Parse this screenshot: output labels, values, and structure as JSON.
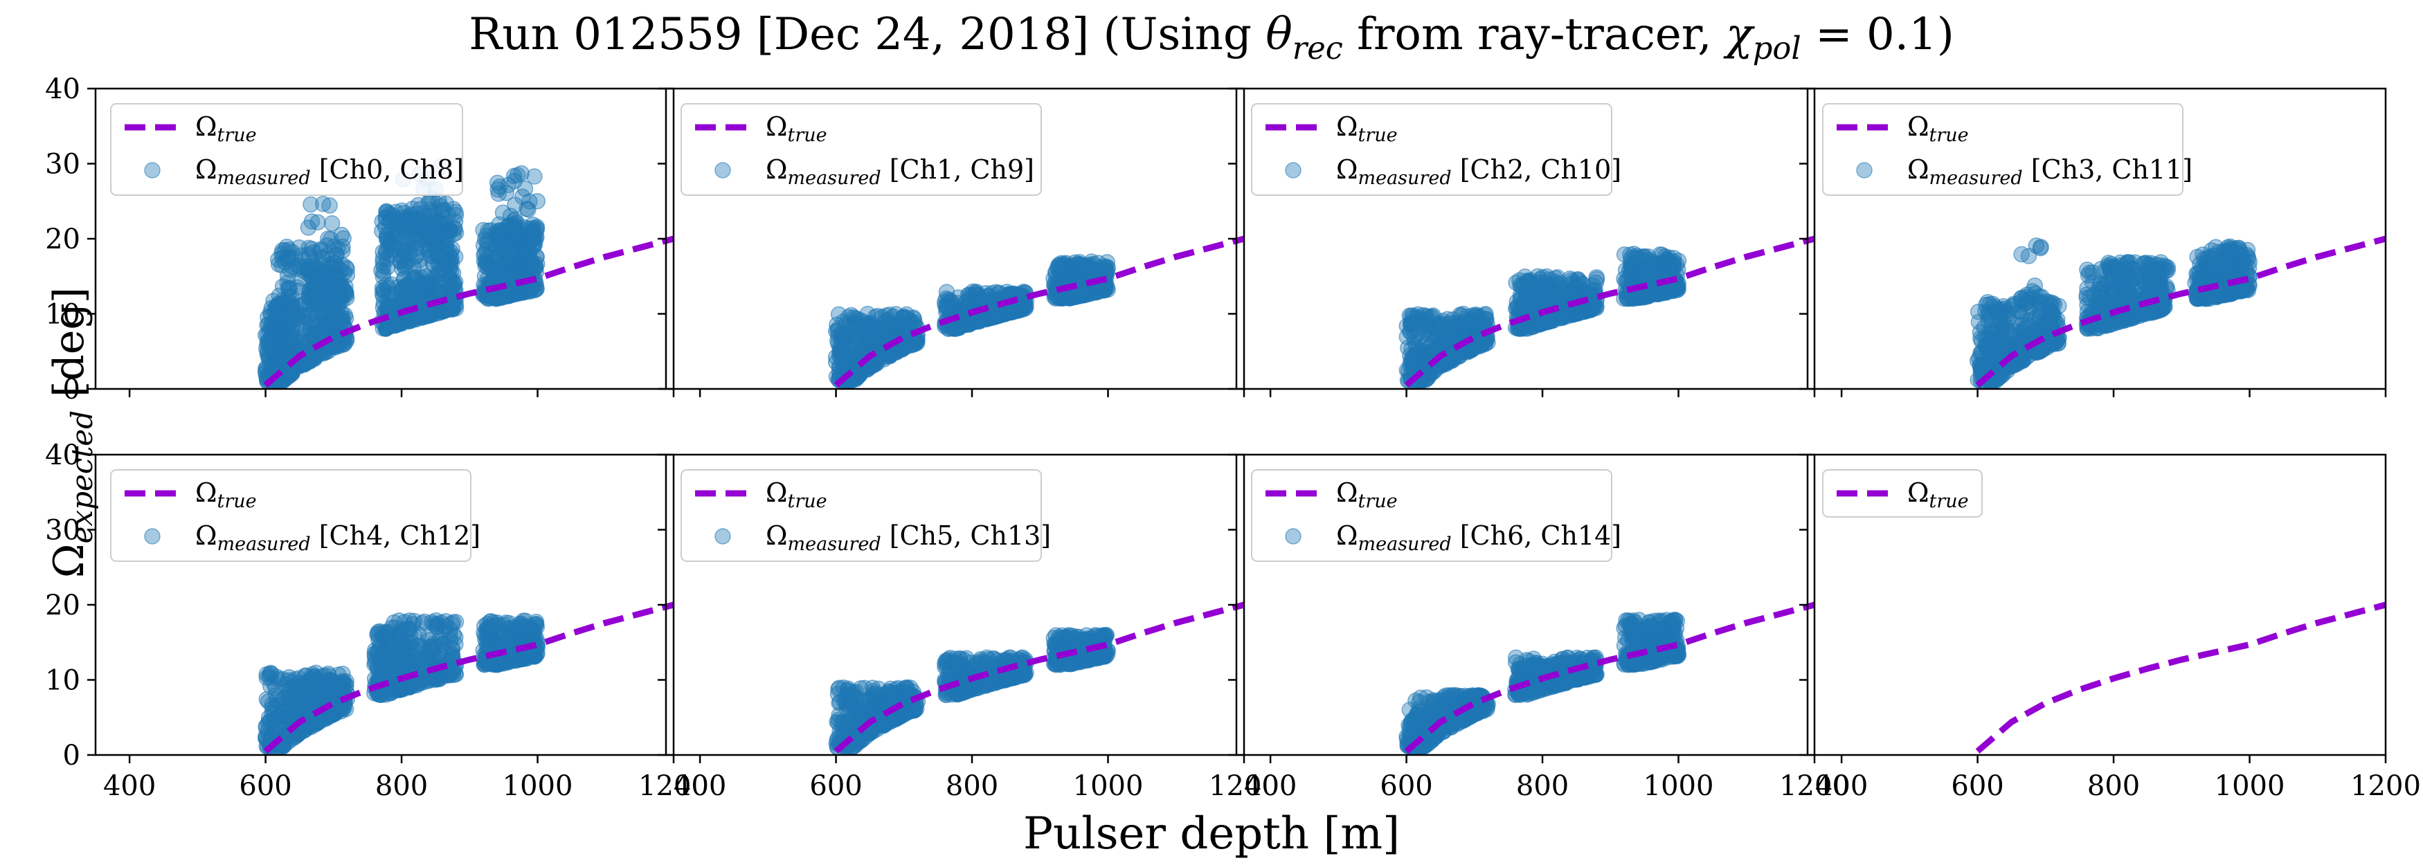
{
  "title": {
    "pre": "Run 012559 [Dec 24, 2018] (Using ",
    "theta": "θ",
    "theta_sub": "rec",
    "mid": " from ray-tracer, ",
    "chi": "χ",
    "chi_sub": "pol",
    "post": " = 0.1)"
  },
  "xlabel": "Pulser depth [m]",
  "ylabel": {
    "omega": "Ω",
    "sub": "expected",
    "post": " [deg]"
  },
  "colors": {
    "true_line": "#9400D3",
    "measured": "#1f77b4",
    "axis": "#000000",
    "legend_border": "#cccccc"
  },
  "chart_data": [
    {
      "type": "scatter",
      "channels": "[Ch0, Ch8]",
      "xlim": [
        350,
        1200
      ],
      "ylim": [
        0,
        40
      ],
      "xticks": [
        "400",
        "600",
        "800",
        "1000",
        "1200"
      ],
      "yticks": [
        "0",
        "10",
        "20",
        "30",
        "40"
      ],
      "grid": false,
      "legend": "upper-left",
      "series": [
        {
          "name": "Ω_true",
          "kind": "dashed-line",
          "x": [
            600,
            650,
            700,
            750,
            800,
            850,
            900,
            950,
            1000,
            1050,
            1100,
            1150,
            1200
          ],
          "y": [
            0.5,
            4.4,
            6.9,
            8.7,
            10.2,
            11.5,
            12.7,
            13.7,
            14.7,
            16.2,
            17.6,
            18.8,
            20.0
          ]
        },
        {
          "name": "Ω_measured [Ch0, Ch8]",
          "kind": "scatter",
          "clusters": [
            {
              "x": [
                600,
                640
              ],
              "y": [
                1,
                12
              ],
              "n": 230
            },
            {
              "x": [
                615,
                720
              ],
              "y": [
                3,
                19
              ],
              "n": 360
            },
            {
              "x": [
                660,
                720
              ],
              "y": [
                12,
                25
              ],
              "n": 60
            },
            {
              "x": [
                770,
                880
              ],
              "y": [
                8,
                24
              ],
              "n": 450
            },
            {
              "x": [
                790,
                870
              ],
              "y": [
                20,
                30
              ],
              "n": 40
            },
            {
              "x": [
                920,
                1000
              ],
              "y": [
                12,
                22
              ],
              "n": 330
            },
            {
              "x": [
                940,
                1000
              ],
              "y": [
                20,
                30
              ],
              "n": 50
            }
          ]
        }
      ]
    },
    {
      "type": "scatter",
      "channels": "[Ch1, Ch9]",
      "xlim": [
        350,
        1200
      ],
      "ylim": [
        0,
        40
      ],
      "xticks": [
        "400",
        "600",
        "800",
        "1000",
        "1200"
      ],
      "yticks": [
        "0",
        "10",
        "20",
        "30",
        "40"
      ],
      "grid": false,
      "legend": "upper-left",
      "series": [
        {
          "name": "Ω_true",
          "kind": "dashed-line",
          "x": [
            600,
            650,
            700,
            750,
            800,
            850,
            900,
            950,
            1000,
            1050,
            1100,
            1150,
            1200
          ],
          "y": [
            0.5,
            4.4,
            6.9,
            8.7,
            10.2,
            11.5,
            12.7,
            13.7,
            14.7,
            16.2,
            17.6,
            18.8,
            20.0
          ]
        },
        {
          "name": "Ω_measured [Ch1, Ch9]",
          "kind": "scatter",
          "clusters": [
            {
              "x": [
                600,
                720
              ],
              "y": [
                1,
                10
              ],
              "n": 350
            },
            {
              "x": [
                760,
                880
              ],
              "y": [
                8,
                13
              ],
              "n": 330
            },
            {
              "x": [
                920,
                1000
              ],
              "y": [
                12,
                17
              ],
              "n": 280
            }
          ]
        }
      ]
    },
    {
      "type": "scatter",
      "channels": "[Ch2, Ch10]",
      "xlim": [
        350,
        1200
      ],
      "ylim": [
        0,
        40
      ],
      "xticks": [
        "400",
        "600",
        "800",
        "1000",
        "1200"
      ],
      "yticks": [
        "0",
        "10",
        "20",
        "30",
        "40"
      ],
      "grid": false,
      "legend": "upper-left",
      "series": [
        {
          "name": "Ω_true",
          "kind": "dashed-line",
          "x": [
            600,
            650,
            700,
            750,
            800,
            850,
            900,
            950,
            1000,
            1050,
            1100,
            1150,
            1200
          ],
          "y": [
            0.5,
            4.4,
            6.9,
            8.7,
            10.2,
            11.5,
            12.7,
            13.7,
            14.7,
            16.2,
            17.6,
            18.8,
            20.0
          ]
        },
        {
          "name": "Ω_measured [Ch2, Ch10]",
          "kind": "scatter",
          "clusters": [
            {
              "x": [
                600,
                720
              ],
              "y": [
                1,
                10
              ],
              "n": 350
            },
            {
              "x": [
                760,
                880
              ],
              "y": [
                8,
                15
              ],
              "n": 330
            },
            {
              "x": [
                920,
                1000
              ],
              "y": [
                12,
                18
              ],
              "n": 280
            }
          ]
        }
      ]
    },
    {
      "type": "scatter",
      "channels": "[Ch3, Ch11]",
      "xlim": [
        350,
        1200
      ],
      "ylim": [
        0,
        40
      ],
      "xticks": [
        "400",
        "600",
        "800",
        "1000",
        "1200"
      ],
      "yticks": [
        "0",
        "10",
        "20",
        "30",
        "40"
      ],
      "grid": false,
      "legend": "upper-left",
      "series": [
        {
          "name": "Ω_true",
          "kind": "dashed-line",
          "x": [
            600,
            650,
            700,
            750,
            800,
            850,
            900,
            950,
            1000,
            1050,
            1100,
            1150,
            1200
          ],
          "y": [
            0.5,
            4.4,
            6.9,
            8.7,
            10.2,
            11.5,
            12.7,
            13.7,
            14.7,
            16.2,
            17.6,
            18.8,
            20.0
          ]
        },
        {
          "name": "Ω_measured [Ch3, Ch11]",
          "kind": "scatter",
          "clusters": [
            {
              "x": [
                600,
                720
              ],
              "y": [
                1,
                12
              ],
              "n": 350
            },
            {
              "x": [
                660,
                700
              ],
              "y": [
                12,
                21
              ],
              "n": 15
            },
            {
              "x": [
                760,
                880
              ],
              "y": [
                8,
                17
              ],
              "n": 330
            },
            {
              "x": [
                920,
                1000
              ],
              "y": [
                12,
                19
              ],
              "n": 280
            }
          ]
        }
      ]
    },
    {
      "type": "scatter",
      "channels": "[Ch4, Ch12]",
      "xlim": [
        350,
        1200
      ],
      "ylim": [
        0,
        40
      ],
      "xticks": [
        "400",
        "600",
        "800",
        "1000",
        "1200"
      ],
      "yticks": [
        "0",
        "10",
        "20",
        "30",
        "40"
      ],
      "grid": false,
      "legend": "upper-left",
      "series": [
        {
          "name": "Ω_true",
          "kind": "dashed-line",
          "x": [
            600,
            650,
            700,
            750,
            800,
            850,
            900,
            950,
            1000,
            1050,
            1100,
            1150,
            1200
          ],
          "y": [
            0.5,
            4.4,
            6.9,
            8.7,
            10.2,
            11.5,
            12.7,
            13.7,
            14.7,
            16.2,
            17.6,
            18.8,
            20.0
          ]
        },
        {
          "name": "Ω_measured [Ch4, Ch12]",
          "kind": "scatter",
          "clusters": [
            {
              "x": [
                600,
                720
              ],
              "y": [
                1,
                11
              ],
              "n": 350
            },
            {
              "x": [
                760,
                880
              ],
              "y": [
                8,
                18
              ],
              "n": 330
            },
            {
              "x": [
                920,
                1000
              ],
              "y": [
                12,
                18
              ],
              "n": 280
            }
          ]
        }
      ]
    },
    {
      "type": "scatter",
      "channels": "[Ch5, Ch13]",
      "xlim": [
        350,
        1200
      ],
      "ylim": [
        0,
        40
      ],
      "xticks": [
        "400",
        "600",
        "800",
        "1000",
        "1200"
      ],
      "yticks": [
        "0",
        "10",
        "20",
        "30",
        "40"
      ],
      "grid": false,
      "legend": "upper-left",
      "series": [
        {
          "name": "Ω_true",
          "kind": "dashed-line",
          "x": [
            600,
            650,
            700,
            750,
            800,
            850,
            900,
            950,
            1000,
            1050,
            1100,
            1150,
            1200
          ],
          "y": [
            0.5,
            4.4,
            6.9,
            8.7,
            10.2,
            11.5,
            12.7,
            13.7,
            14.7,
            16.2,
            17.6,
            18.8,
            20.0
          ]
        },
        {
          "name": "Ω_measured [Ch5, Ch13]",
          "kind": "scatter",
          "clusters": [
            {
              "x": [
                600,
                720
              ],
              "y": [
                1,
                9
              ],
              "n": 350
            },
            {
              "x": [
                760,
                880
              ],
              "y": [
                8,
                13
              ],
              "n": 330
            },
            {
              "x": [
                920,
                1000
              ],
              "y": [
                12,
                16
              ],
              "n": 280
            }
          ]
        }
      ]
    },
    {
      "type": "scatter",
      "channels": "[Ch6, Ch14]",
      "xlim": [
        350,
        1200
      ],
      "ylim": [
        0,
        40
      ],
      "xticks": [
        "400",
        "600",
        "800",
        "1000",
        "1200"
      ],
      "yticks": [
        "0",
        "10",
        "20",
        "30",
        "40"
      ],
      "grid": false,
      "legend": "upper-left",
      "series": [
        {
          "name": "Ω_true",
          "kind": "dashed-line",
          "x": [
            600,
            650,
            700,
            750,
            800,
            850,
            900,
            950,
            1000,
            1050,
            1100,
            1150,
            1200
          ],
          "y": [
            0.5,
            4.4,
            6.9,
            8.7,
            10.2,
            11.5,
            12.7,
            13.7,
            14.7,
            16.2,
            17.6,
            18.8,
            20.0
          ]
        },
        {
          "name": "Ω_measured [Ch6, Ch14]",
          "kind": "scatter",
          "clusters": [
            {
              "x": [
                600,
                720
              ],
              "y": [
                1,
                8
              ],
              "n": 350
            },
            {
              "x": [
                760,
                880
              ],
              "y": [
                8,
                13
              ],
              "n": 330
            },
            {
              "x": [
                920,
                1000
              ],
              "y": [
                12,
                18
              ],
              "n": 280
            }
          ]
        }
      ]
    },
    {
      "type": "line",
      "channels": "",
      "xlim": [
        350,
        1200
      ],
      "ylim": [
        0,
        40
      ],
      "xticks": [
        "400",
        "600",
        "800",
        "1000",
        "1200"
      ],
      "yticks": [
        "0",
        "10",
        "20",
        "30",
        "40"
      ],
      "grid": false,
      "legend": "upper-left",
      "series": [
        {
          "name": "Ω_true",
          "kind": "dashed-line",
          "x": [
            600,
            650,
            700,
            750,
            800,
            850,
            900,
            950,
            1000,
            1050,
            1100,
            1150,
            1200
          ],
          "y": [
            0.5,
            4.4,
            6.9,
            8.7,
            10.2,
            11.5,
            12.7,
            13.7,
            14.7,
            16.2,
            17.6,
            18.8,
            20.0
          ]
        }
      ]
    }
  ]
}
